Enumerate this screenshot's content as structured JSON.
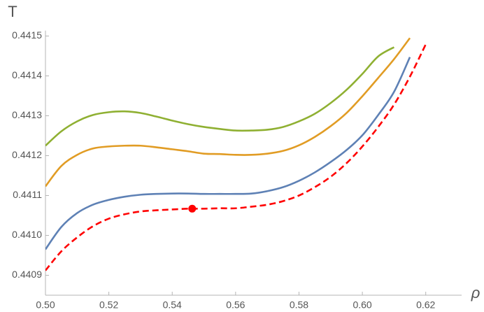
{
  "chart_data": {
    "type": "line",
    "xlabel": "ρ",
    "ylabel": "T",
    "x": [
      0.5,
      0.505,
      0.51,
      0.515,
      0.52,
      0.525,
      0.53,
      0.535,
      0.54,
      0.545,
      0.55,
      0.555,
      0.56,
      0.565,
      0.57,
      0.575,
      0.58,
      0.585,
      0.59,
      0.595,
      0.6,
      0.605,
      0.61,
      0.615,
      0.62
    ],
    "series": [
      {
        "color": "#8fb032",
        "values": [
          0.441225,
          0.441261,
          0.441286,
          0.441302,
          0.441309,
          0.441311,
          0.441307,
          0.441298,
          0.441288,
          0.441279,
          0.441272,
          0.441267,
          0.441263,
          0.441263,
          0.441265,
          0.441272,
          0.441286,
          0.441305,
          0.441332,
          0.441365,
          0.441405,
          0.441449,
          0.441472,
          null,
          null
        ]
      },
      {
        "color": "#e19c24",
        "values": [
          0.441123,
          0.441174,
          0.441202,
          0.441218,
          0.441223,
          0.441225,
          0.441225,
          0.441221,
          0.441216,
          0.441211,
          0.441205,
          0.441204,
          0.441202,
          0.441202,
          0.441205,
          0.441212,
          0.441226,
          0.441247,
          0.441274,
          0.441307,
          0.441349,
          0.441395,
          0.441442,
          0.441495,
          null
        ]
      },
      {
        "color": "#5e81b5",
        "values": [
          0.440965,
          0.441021,
          0.441056,
          0.441077,
          0.441089,
          0.441097,
          0.441102,
          0.441104,
          0.441105,
          0.441105,
          0.441104,
          0.441104,
          0.441104,
          0.441105,
          0.441111,
          0.441121,
          0.441137,
          0.441158,
          0.441184,
          0.441214,
          0.441251,
          0.441302,
          0.44136,
          0.441447,
          null
        ]
      },
      {
        "color": "#ff0000",
        "dashed": true,
        "values": [
          0.440912,
          0.44096,
          0.440995,
          0.441023,
          0.441042,
          0.441053,
          0.44106,
          0.441063,
          0.441065,
          0.441067,
          0.441067,
          0.441068,
          0.441068,
          0.441072,
          0.441077,
          0.441086,
          0.4411,
          0.441121,
          0.441147,
          0.441181,
          0.441223,
          0.441272,
          0.441328,
          0.441398,
          0.441479
        ]
      }
    ],
    "marker": {
      "x": 0.5463,
      "y": 0.441067,
      "color": "#ff0000"
    },
    "xlim": [
      0.5,
      0.63
    ],
    "ylim": [
      0.44085,
      0.44151
    ],
    "xticks": [
      {
        "value": 0.5,
        "label": "0.50"
      },
      0.52,
      0.54,
      0.56,
      0.58,
      {
        "value": 0.6,
        "label": "0.60"
      },
      0.62
    ],
    "yticks": [
      0.4409,
      {
        "value": 0.441,
        "label": "0.4410"
      },
      0.4411,
      0.4412,
      0.4413,
      0.4414,
      0.4415
    ],
    "grid": false
  }
}
